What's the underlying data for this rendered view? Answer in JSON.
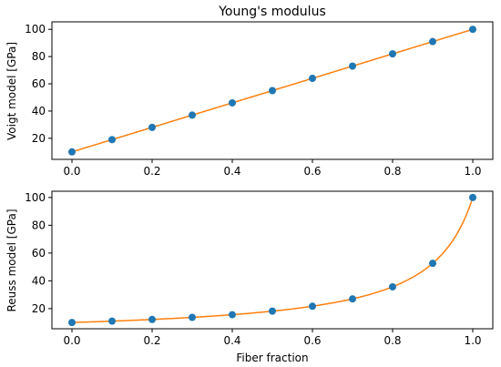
{
  "chart_data": [
    {
      "type": "line",
      "title": "Young's modulus",
      "xlabel": "",
      "ylabel": "Voigt model [GPa]",
      "xlim": [
        -0.05,
        1.05
      ],
      "ylim": [
        4.5,
        105.5
      ],
      "xticks": [
        0.0,
        0.2,
        0.4,
        0.6,
        0.8,
        1.0
      ],
      "xtick_labels": [
        "0.0",
        "0.2",
        "0.4",
        "0.6",
        "0.8",
        "1.0"
      ],
      "yticks": [
        20,
        40,
        60,
        80,
        100
      ],
      "ytick_labels": [
        "20",
        "40",
        "60",
        "80",
        "100"
      ],
      "grid": false,
      "series": [
        {
          "kind": "scatter",
          "color": "#1f77b4",
          "x": [
            0.0,
            0.1,
            0.2,
            0.3,
            0.4,
            0.5,
            0.6,
            0.7,
            0.8,
            0.9,
            1.0
          ],
          "y": [
            10,
            19,
            28,
            37,
            46,
            55,
            64,
            73,
            82,
            91,
            100
          ]
        },
        {
          "kind": "line",
          "color": "#ff7f0e",
          "model": "voigt",
          "E_matrix": 10,
          "E_fiber": 100
        }
      ]
    },
    {
      "type": "line",
      "title": "",
      "xlabel": "Fiber fraction",
      "ylabel": "Reuss model [GPa]",
      "xlim": [
        -0.05,
        1.05
      ],
      "ylim": [
        5.5,
        104.5
      ],
      "xticks": [
        0.0,
        0.2,
        0.4,
        0.6,
        0.8,
        1.0
      ],
      "xtick_labels": [
        "0.0",
        "0.2",
        "0.4",
        "0.6",
        "0.8",
        "1.0"
      ],
      "yticks": [
        20,
        40,
        60,
        80,
        100
      ],
      "ytick_labels": [
        "20",
        "40",
        "60",
        "80",
        "100"
      ],
      "grid": false,
      "series": [
        {
          "kind": "scatter",
          "color": "#1f77b4",
          "x": [
            0.0,
            0.1,
            0.2,
            0.3,
            0.4,
            0.5,
            0.6,
            0.7,
            0.8,
            0.9,
            1.0
          ],
          "y": [
            10.0,
            10.99,
            12.2,
            13.7,
            15.6,
            18.2,
            21.7,
            27.0,
            35.7,
            52.6,
            100.0
          ]
        },
        {
          "kind": "line",
          "color": "#ff7f0e",
          "model": "reuss",
          "E_matrix": 10,
          "E_fiber": 100
        }
      ]
    }
  ]
}
